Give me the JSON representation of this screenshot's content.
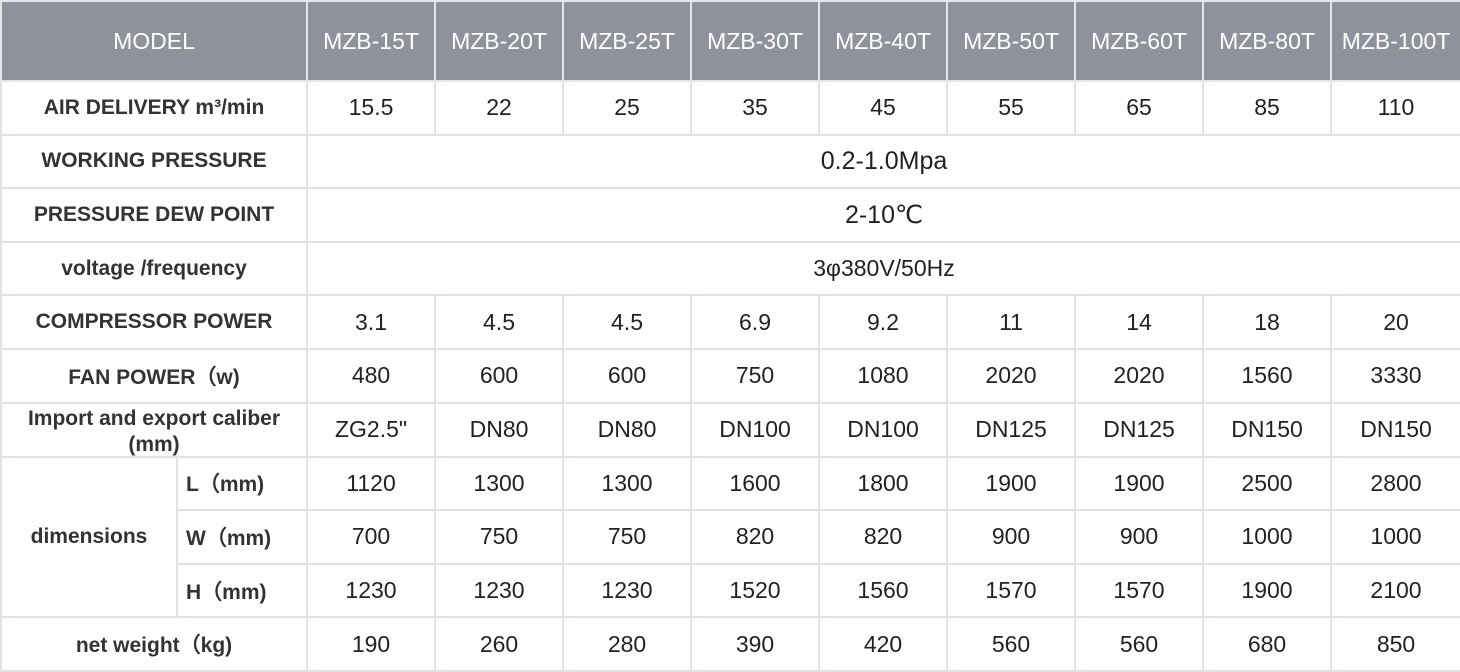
{
  "header": {
    "model_label": "MODEL",
    "models": [
      "MZB-15T",
      "MZB-20T",
      "MZB-25T",
      "MZB-30T",
      "MZB-40T",
      "MZB-50T",
      "MZB-60T",
      "MZB-80T",
      "MZB-100T"
    ]
  },
  "rows": {
    "air_delivery": {
      "label": "AIR DELIVERY m³/min",
      "values": [
        "15.5",
        "22",
        "25",
        "35",
        "45",
        "55",
        "65",
        "85",
        "110"
      ]
    },
    "working_pressure": {
      "label": "WORKING PRESSURE",
      "value": "0.2-1.0Mpa"
    },
    "dew_point": {
      "label": "PRESSURE DEW POINT",
      "value": "2-10℃"
    },
    "voltage": {
      "label": "voltage /frequency",
      "value": "3φ380V/50Hz"
    },
    "compressor_power": {
      "label": "COMPRESSOR POWER",
      "values": [
        "3.1",
        "4.5",
        "4.5",
        "6.9",
        "9.2",
        "11",
        "14",
        "18",
        "20"
      ]
    },
    "fan_power": {
      "label": "FAN POWER（w)",
      "values": [
        "480",
        "600",
        "600",
        "750",
        "1080",
        "2020",
        "2020",
        "1560",
        "3330"
      ]
    },
    "caliber": {
      "label": "Import and export caliber (mm)",
      "values": [
        "ZG2.5\"",
        "DN80",
        "DN80",
        "DN100",
        "DN100",
        "DN125",
        "DN125",
        "DN150",
        "DN150"
      ]
    },
    "dimensions": {
      "label": "dimensions",
      "L": {
        "label": "L（mm)",
        "values": [
          "1120",
          "1300",
          "1300",
          "1600",
          "1800",
          "1900",
          "1900",
          "2500",
          "2800"
        ]
      },
      "W": {
        "label": "W（mm)",
        "values": [
          "700",
          "750",
          "750",
          "820",
          "820",
          "900",
          "900",
          "1000",
          "1000"
        ]
      },
      "H": {
        "label": "H（mm)",
        "values": [
          "1230",
          "1230",
          "1230",
          "1520",
          "1560",
          "1570",
          "1570",
          "1900",
          "2100"
        ]
      }
    },
    "net_weight": {
      "label": "net weight（kg)",
      "values": [
        "190",
        "260",
        "280",
        "390",
        "420",
        "560",
        "560",
        "680",
        "850"
      ]
    }
  }
}
